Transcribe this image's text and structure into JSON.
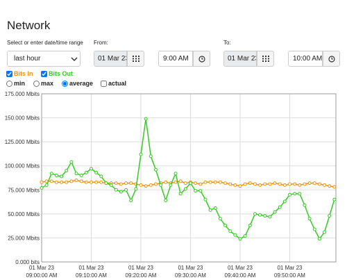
{
  "header": {
    "title": "Network"
  },
  "controls": {
    "range_label": "Select or enter date/time range",
    "range_select": "last hour",
    "from_label": "From:",
    "from_date": "01 Mar 23",
    "from_time": "9:00 AM",
    "to_label": "To:",
    "to_date": "01 Mar 23",
    "to_time": "10:00 AM"
  },
  "toggles": [
    true,
    true
  ],
  "aggregation": {
    "options": [
      {
        "label": "min",
        "checked": false
      },
      {
        "label": "max",
        "checked": false
      },
      {
        "label": "average",
        "checked": true
      }
    ],
    "actual": {
      "label": "actual",
      "checked": false
    }
  },
  "chart_data": {
    "type": "line",
    "x": [
      0,
      1,
      2,
      3,
      4,
      5,
      6,
      7,
      8,
      9,
      10,
      11,
      12,
      13,
      14,
      15,
      16,
      17,
      18,
      19,
      20,
      21,
      22,
      23,
      24,
      25,
      26,
      27,
      28,
      29,
      30,
      31,
      32,
      33,
      34,
      35,
      36,
      37,
      38,
      39,
      40,
      41,
      42,
      43,
      44,
      45,
      46,
      47,
      48,
      49,
      50,
      51,
      52,
      53,
      54,
      55,
      56,
      57,
      58,
      59
    ],
    "series": [
      {
        "name": "Bits In",
        "color": "#f0900a",
        "values": [
          83,
          84,
          84,
          83,
          83,
          83,
          84,
          85,
          84,
          83,
          83,
          83,
          83,
          82,
          82,
          82,
          81,
          82,
          82,
          81,
          80,
          79,
          80,
          81,
          82,
          83,
          82,
          83,
          84,
          82,
          83,
          82,
          81,
          83,
          83,
          83,
          83,
          82,
          81,
          80,
          79,
          81,
          82,
          81,
          80,
          81,
          81,
          82,
          81,
          80,
          81,
          81,
          80,
          81,
          82,
          82,
          81,
          80,
          79,
          78
        ]
      },
      {
        "name": "Bits Out",
        "color": "#33cc22",
        "values": [
          77,
          80,
          92,
          90,
          89,
          95,
          104,
          92,
          90,
          93,
          97,
          93,
          89,
          82,
          80,
          75,
          73,
          75,
          64,
          76,
          112,
          149,
          110,
          96,
          80,
          64,
          80,
          92,
          71,
          76,
          82,
          74,
          74,
          65,
          54,
          56,
          45,
          38,
          32,
          28,
          24,
          27,
          38,
          50,
          49,
          48,
          47,
          52,
          57,
          63,
          70,
          71,
          71,
          59,
          45,
          34,
          24,
          31,
          48,
          65
        ]
      }
    ],
    "xlim": [
      0,
      59.3
    ],
    "xticks": [
      {
        "value": 0,
        "label": [
          "01 Mar 23",
          "09:00:00 AM"
        ]
      },
      {
        "value": 10,
        "label": [
          "01 Mar 23",
          "09:10:00 AM"
        ]
      },
      {
        "value": 20,
        "label": [
          "01 Mar 23",
          "09:20:00 AM"
        ]
      },
      {
        "value": 30,
        "label": [
          "01 Mar 23",
          "09:30:00 AM"
        ]
      },
      {
        "value": 40,
        "label": [
          "01 Mar 23",
          "09:40:00 AM"
        ]
      },
      {
        "value": 50,
        "label": [
          "01 Mar 23",
          "09:50:00 AM"
        ]
      }
    ],
    "ylim": [
      0,
      175
    ],
    "yticks": [
      {
        "value": 0,
        "label": "0.000 bits"
      },
      {
        "value": 25,
        "label": "25.000 Mbits"
      },
      {
        "value": 50,
        "label": "50.000 Mbits"
      },
      {
        "value": 75,
        "label": "75.000 Mbits"
      },
      {
        "value": 100,
        "label": "100.000 Mbits"
      },
      {
        "value": 125,
        "label": "125.000 Mbits"
      },
      {
        "value": 150,
        "label": "150.000 Mbits"
      },
      {
        "value": 175,
        "label": "175.000 Mbits"
      }
    ],
    "grid": true
  }
}
